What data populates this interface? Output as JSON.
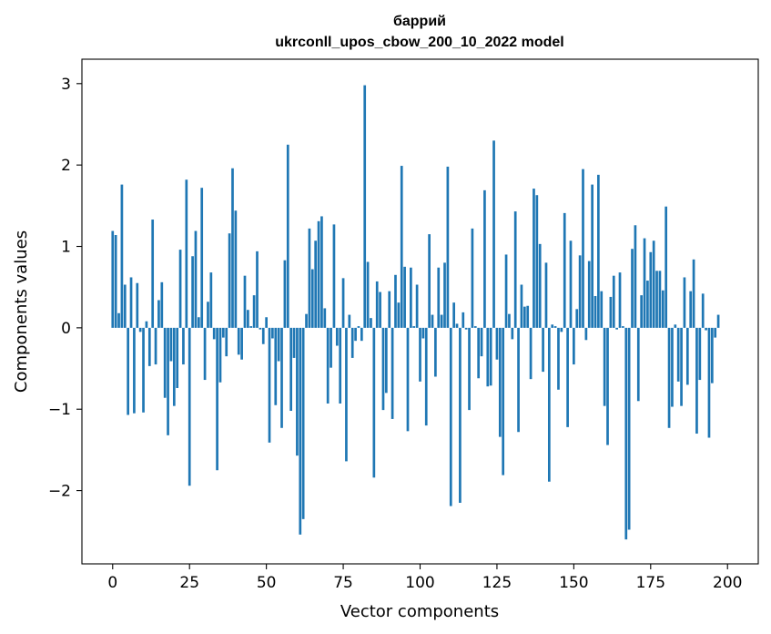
{
  "chart_data": {
    "type": "bar",
    "title": "баррий",
    "subtitle": "ukrconll_upos_cbow_200_10_2022 model",
    "xlabel": "Vector components",
    "ylabel": "Components values",
    "xlim": [
      -10,
      210
    ],
    "ylim": [
      -2.9,
      3.3
    ],
    "xticks": [
      0,
      25,
      50,
      75,
      100,
      125,
      150,
      175,
      200
    ],
    "yticks": [
      -2,
      -1,
      0,
      1,
      2,
      3
    ],
    "xtick_labels": [
      "0",
      "25",
      "50",
      "75",
      "100",
      "125",
      "150",
      "175",
      "200"
    ],
    "ytick_labels": [
      "−2",
      "−1",
      "0",
      "1",
      "2",
      "3"
    ],
    "bar_color": "#1f77b4",
    "values": [
      1.19,
      1.14,
      0.18,
      1.76,
      0.53,
      -1.07,
      0.62,
      -1.05,
      0.55,
      -0.05,
      -1.04,
      0.08,
      -0.47,
      1.33,
      -0.45,
      0.34,
      0.56,
      -0.86,
      -1.32,
      -0.41,
      -0.96,
      -0.74,
      0.96,
      -0.45,
      1.82,
      -1.94,
      0.88,
      1.19,
      0.13,
      1.72,
      -0.64,
      0.32,
      0.68,
      -0.14,
      -1.75,
      -0.67,
      -0.12,
      -0.35,
      1.16,
      1.96,
      1.44,
      -0.33,
      -0.39,
      0.64,
      0.22,
      0.02,
      0.4,
      0.94,
      -0.02,
      -0.2,
      0.13,
      -1.41,
      -0.13,
      -0.95,
      -0.41,
      -1.23,
      0.83,
      2.25,
      -1.02,
      -0.37,
      -1.57,
      -2.54,
      -2.35,
      0.17,
      1.22,
      0.72,
      1.07,
      1.31,
      1.37,
      0.24,
      -0.93,
      -0.49,
      1.27,
      -0.22,
      -0.93,
      0.61,
      -1.64,
      0.16,
      -0.37,
      -0.16,
      0.02,
      -0.16,
      2.98,
      0.81,
      0.12,
      -1.84,
      0.57,
      0.44,
      -1.01,
      -0.8,
      0.45,
      -1.12,
      0.65,
      0.31,
      1.99,
      0.75,
      -1.27,
      0.74,
      0.02,
      0.53,
      -0.66,
      -0.13,
      -1.2,
      1.15,
      0.16,
      -0.6,
      0.74,
      0.16,
      0.8,
      1.98,
      -2.19,
      0.31,
      0.05,
      -2.15,
      0.19,
      -0.02,
      -1.01,
      1.22,
      0.02,
      -0.62,
      -0.35,
      1.69,
      -0.72,
      -0.71,
      2.3,
      -0.39,
      -1.34,
      -1.81,
      0.9,
      0.17,
      -0.14,
      1.43,
      -1.28,
      0.53,
      0.26,
      0.27,
      -0.63,
      1.71,
      1.63,
      1.03,
      -0.54,
      0.8,
      -1.89,
      0.04,
      0.02,
      -0.76,
      -0.05,
      1.41,
      -1.22,
      1.07,
      -0.45,
      0.23,
      0.89,
      1.95,
      -0.15,
      0.82,
      1.76,
      0.39,
      1.88,
      0.45,
      -0.96,
      -1.44,
      0.38,
      0.64,
      -0.02,
      0.68,
      0.02,
      -2.6,
      -2.48,
      0.97,
      1.26,
      -0.9,
      0.4,
      1.1,
      0.58,
      0.93,
      1.07,
      0.7,
      0.7,
      0.46,
      1.49,
      -1.23,
      -0.97,
      0.04,
      -0.66,
      -0.96,
      0.62,
      -0.7,
      0.45,
      0.84,
      -1.3,
      -0.64,
      0.42,
      -0.03,
      -1.35,
      -0.68,
      -0.12,
      0.16
    ]
  }
}
